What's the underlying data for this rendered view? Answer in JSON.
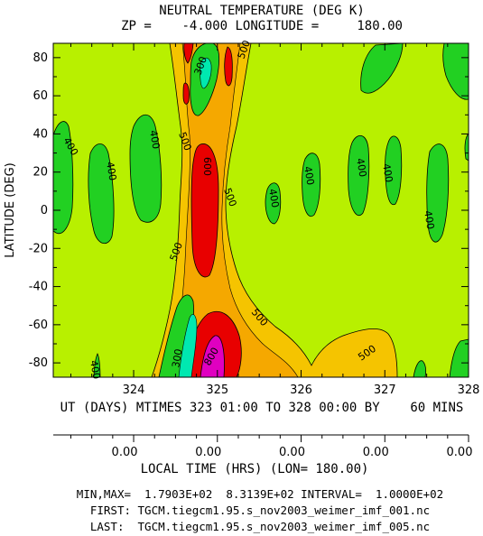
{
  "chart_data": {
    "type": "heatmap",
    "title": "NEUTRAL TEMPERATURE (DEG K)",
    "subtitle": "ZP =    -4.000 LONGITUDE =     180.00",
    "ylabel": "LATITUDE (DEG)",
    "xlabel": "UT (DAYS) MTIMES 323 01:00 TO 328 00:00 BY    60 MINS",
    "xlim": [
      323.04,
      328.0
    ],
    "ylim": [
      -87.5,
      87.5
    ],
    "x_ticks": [
      "324",
      "325",
      "326",
      "327",
      "328"
    ],
    "y_ticks": [
      "80",
      "60",
      "40",
      "20",
      "0",
      "-20",
      "-40",
      "-60",
      "-80"
    ],
    "local_time_ticks": [
      "0.00",
      "0.00",
      "0.00",
      "0.00",
      "0.00"
    ],
    "local_time_label": "LOCAL TIME (HRS) (LON= 180.00)",
    "contour_labels": [
      "400",
      "400",
      "400",
      "400",
      "400",
      "400",
      "400",
      "400",
      "400",
      "500",
      "500",
      "500",
      "500",
      "500",
      "500",
      "600",
      "300",
      "300",
      "800"
    ],
    "stats": "MIN,MAX=  1.7903E+02  8.3139E+02 INTERVAL=  1.0000E+02",
    "first_file": "FIRST: TGCM.tiegcm1.95.s_nov2003_weimer_imf_001.nc",
    "last_file": "LAST:  TGCM.tiegcm1.95.s_nov2003_weimer_imf_005.nc",
    "colors": {
      "background_level": "#b8f000",
      "low_400": "#22d022",
      "level_300": "#00e8b0",
      "level_500": "#f5a800",
      "level_600": "#f5c400",
      "high_700": "#e80000",
      "peak_800": "#e000c0"
    }
  }
}
